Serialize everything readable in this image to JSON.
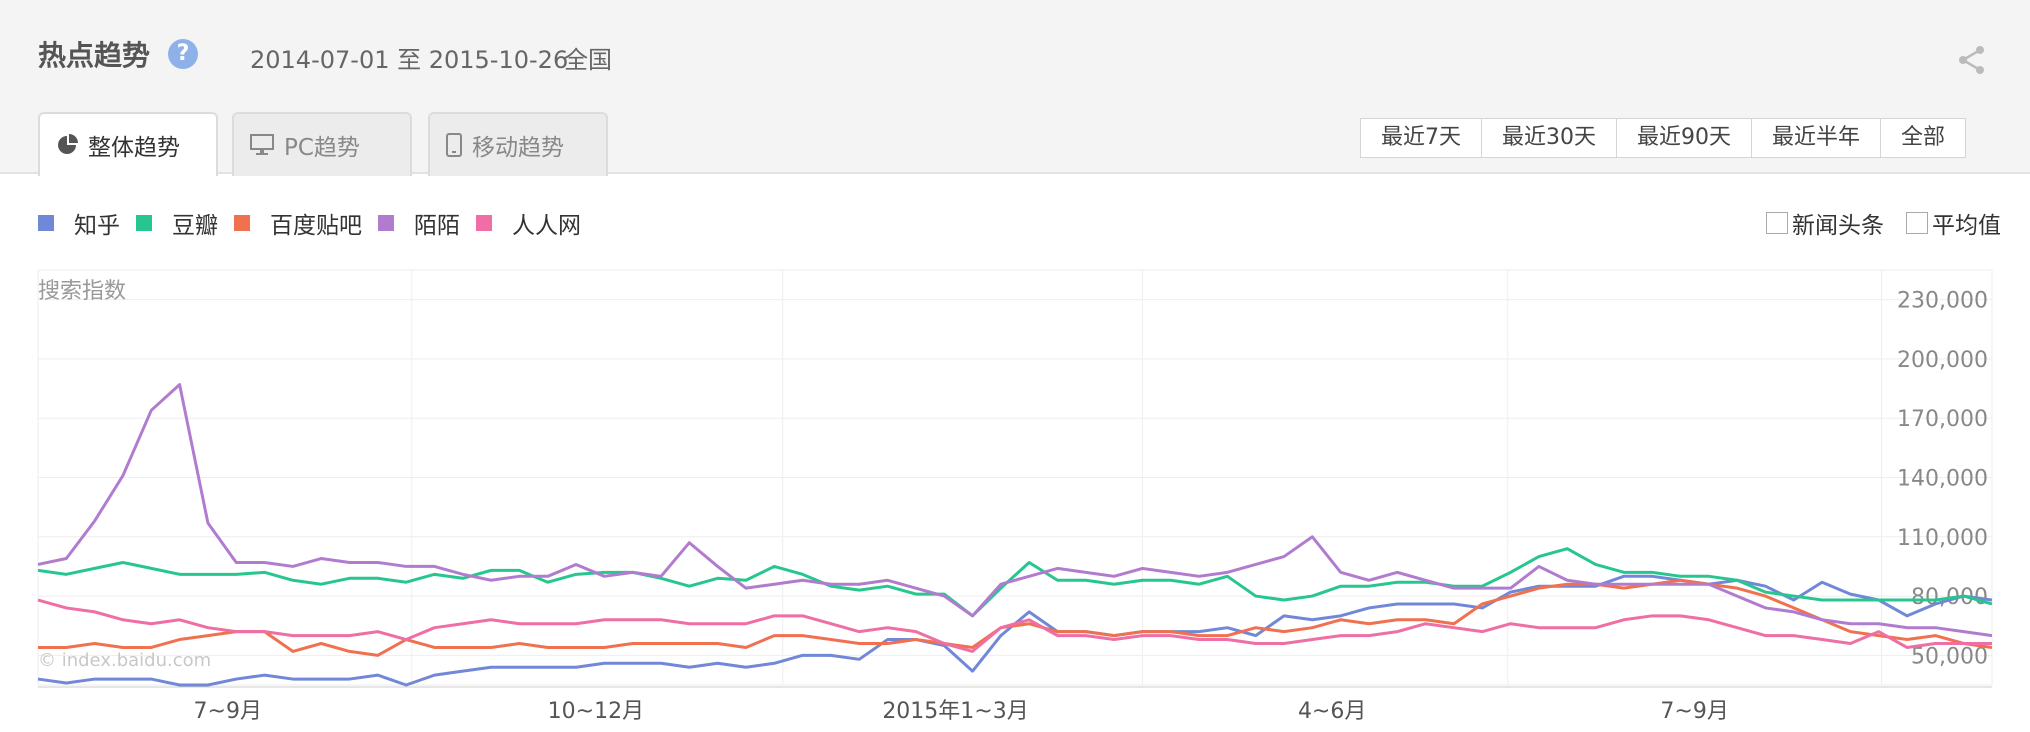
{
  "header": {
    "title": "热点趋势",
    "help_icon": "question-icon",
    "date_range": "2014-07-01 至 2015-10-26",
    "region": "全国",
    "share_icon": "share-icon"
  },
  "tabs": [
    {
      "label": "整体趋势",
      "icon": "pie-chart-icon",
      "active": true
    },
    {
      "label": "PC趋势",
      "icon": "monitor-icon",
      "active": false
    },
    {
      "label": "移动趋势",
      "icon": "phone-icon",
      "active": false
    }
  ],
  "ranges": [
    "最近7天",
    "最近30天",
    "最近90天",
    "最近半年",
    "全部"
  ],
  "options": [
    "新闻头条",
    "平均值"
  ],
  "colors": {
    "zhihu": "#7187d8",
    "douban": "#28c68f",
    "tieba": "#f0714f",
    "momo": "#b17ccf",
    "renren": "#ef6ea3"
  },
  "chart_data": {
    "type": "line",
    "ylabel": "搜索指数",
    "ylim": [
      35000,
      245000
    ],
    "yticks": [
      "50,000",
      "80,000",
      "110,000",
      "140,000",
      "170,000",
      "200,000",
      "230,000"
    ],
    "ytick_values": [
      50000,
      80000,
      110000,
      140000,
      170000,
      200000,
      230000
    ],
    "x_labels": [
      "7~9月",
      "10~12月",
      "2015年1~3月",
      "4~6月",
      "7~9月"
    ],
    "x_label_weeks": [
      6.7,
      19.7,
      32.4,
      45.7,
      58.5
    ],
    "x_grid_weeks": [
      13.2,
      26.3,
      39.0,
      51.9,
      65.1
    ],
    "x_range_weeks": [
      0,
      69
    ],
    "watermark": "© index.baidu.com",
    "series": [
      {
        "name": "知乎",
        "color": "#7187d8",
        "values": [
          38000,
          36000,
          38000,
          38000,
          38000,
          35000,
          35000,
          38000,
          40000,
          38000,
          38000,
          38000,
          40000,
          35000,
          40000,
          42000,
          44000,
          44000,
          44000,
          44000,
          46000,
          46000,
          46000,
          44000,
          46000,
          44000,
          46000,
          50000,
          50000,
          48000,
          58000,
          58000,
          55000,
          42000,
          60000,
          72000,
          62000,
          62000,
          60000,
          62000,
          62000,
          62000,
          64000,
          60000,
          70000,
          68000,
          70000,
          74000,
          76000,
          76000,
          76000,
          74000,
          82000,
          85000,
          85000,
          85000,
          90000,
          90000,
          88000,
          86000,
          88000,
          85000,
          78000,
          87000,
          81000,
          78000,
          70000,
          76000,
          80000,
          78000
        ]
      },
      {
        "name": "豆瓣",
        "color": "#28c68f",
        "values": [
          93000,
          91000,
          94000,
          97000,
          94000,
          91000,
          91000,
          91000,
          92000,
          88000,
          86000,
          89000,
          89000,
          87000,
          91000,
          89000,
          93000,
          93000,
          87000,
          91000,
          92000,
          92000,
          89000,
          85000,
          89000,
          88000,
          95000,
          91000,
          85000,
          83000,
          85000,
          81000,
          81000,
          70000,
          84000,
          97000,
          88000,
          88000,
          86000,
          88000,
          88000,
          86000,
          90000,
          80000,
          78000,
          80000,
          85000,
          85000,
          87000,
          87000,
          85000,
          85000,
          92000,
          100000,
          104000,
          96000,
          92000,
          92000,
          90000,
          90000,
          88000,
          82000,
          80000,
          78000,
          78000,
          78000,
          78000,
          78000,
          80000,
          76000
        ]
      },
      {
        "name": "百度贴吧",
        "color": "#f0714f",
        "values": [
          54000,
          54000,
          56000,
          54000,
          54000,
          58000,
          60000,
          62000,
          62000,
          52000,
          56000,
          52000,
          50000,
          58000,
          54000,
          54000,
          54000,
          56000,
          54000,
          54000,
          54000,
          56000,
          56000,
          56000,
          56000,
          54000,
          60000,
          60000,
          58000,
          56000,
          56000,
          58000,
          56000,
          54000,
          64000,
          66000,
          62000,
          62000,
          60000,
          62000,
          62000,
          60000,
          60000,
          64000,
          62000,
          64000,
          68000,
          66000,
          68000,
          68000,
          66000,
          76000,
          80000,
          84000,
          86000,
          86000,
          84000,
          86000,
          88000,
          86000,
          84000,
          80000,
          74000,
          68000,
          62000,
          60000,
          58000,
          60000,
          56000,
          54000
        ]
      },
      {
        "name": "陌陌",
        "color": "#b17ccf",
        "values": [
          96000,
          99000,
          118000,
          141000,
          174000,
          187000,
          117000,
          97000,
          97000,
          95000,
          99000,
          97000,
          97000,
          95000,
          95000,
          91000,
          88000,
          90000,
          90000,
          96000,
          90000,
          92000,
          90000,
          107000,
          95000,
          84000,
          86000,
          88000,
          86000,
          86000,
          88000,
          84000,
          80000,
          70000,
          86000,
          90000,
          94000,
          92000,
          90000,
          94000,
          92000,
          90000,
          92000,
          96000,
          100000,
          110000,
          92000,
          88000,
          92000,
          88000,
          84000,
          84000,
          84000,
          95000,
          88000,
          86000,
          86000,
          86000,
          86000,
          86000,
          80000,
          74000,
          72000,
          68000,
          66000,
          66000,
          64000,
          64000,
          62000,
          60000
        ]
      },
      {
        "name": "人人网",
        "color": "#ef6ea3",
        "values": [
          78000,
          74000,
          72000,
          68000,
          66000,
          68000,
          64000,
          62000,
          62000,
          60000,
          60000,
          60000,
          62000,
          58000,
          64000,
          66000,
          68000,
          66000,
          66000,
          66000,
          68000,
          68000,
          68000,
          66000,
          66000,
          66000,
          70000,
          70000,
          66000,
          62000,
          64000,
          62000,
          56000,
          52000,
          64000,
          68000,
          60000,
          60000,
          58000,
          60000,
          60000,
          58000,
          58000,
          56000,
          56000,
          58000,
          60000,
          60000,
          62000,
          66000,
          64000,
          62000,
          66000,
          64000,
          64000,
          64000,
          68000,
          70000,
          70000,
          68000,
          64000,
          60000,
          60000,
          58000,
          56000,
          62000,
          54000,
          56000,
          56000,
          56000
        ]
      }
    ]
  }
}
